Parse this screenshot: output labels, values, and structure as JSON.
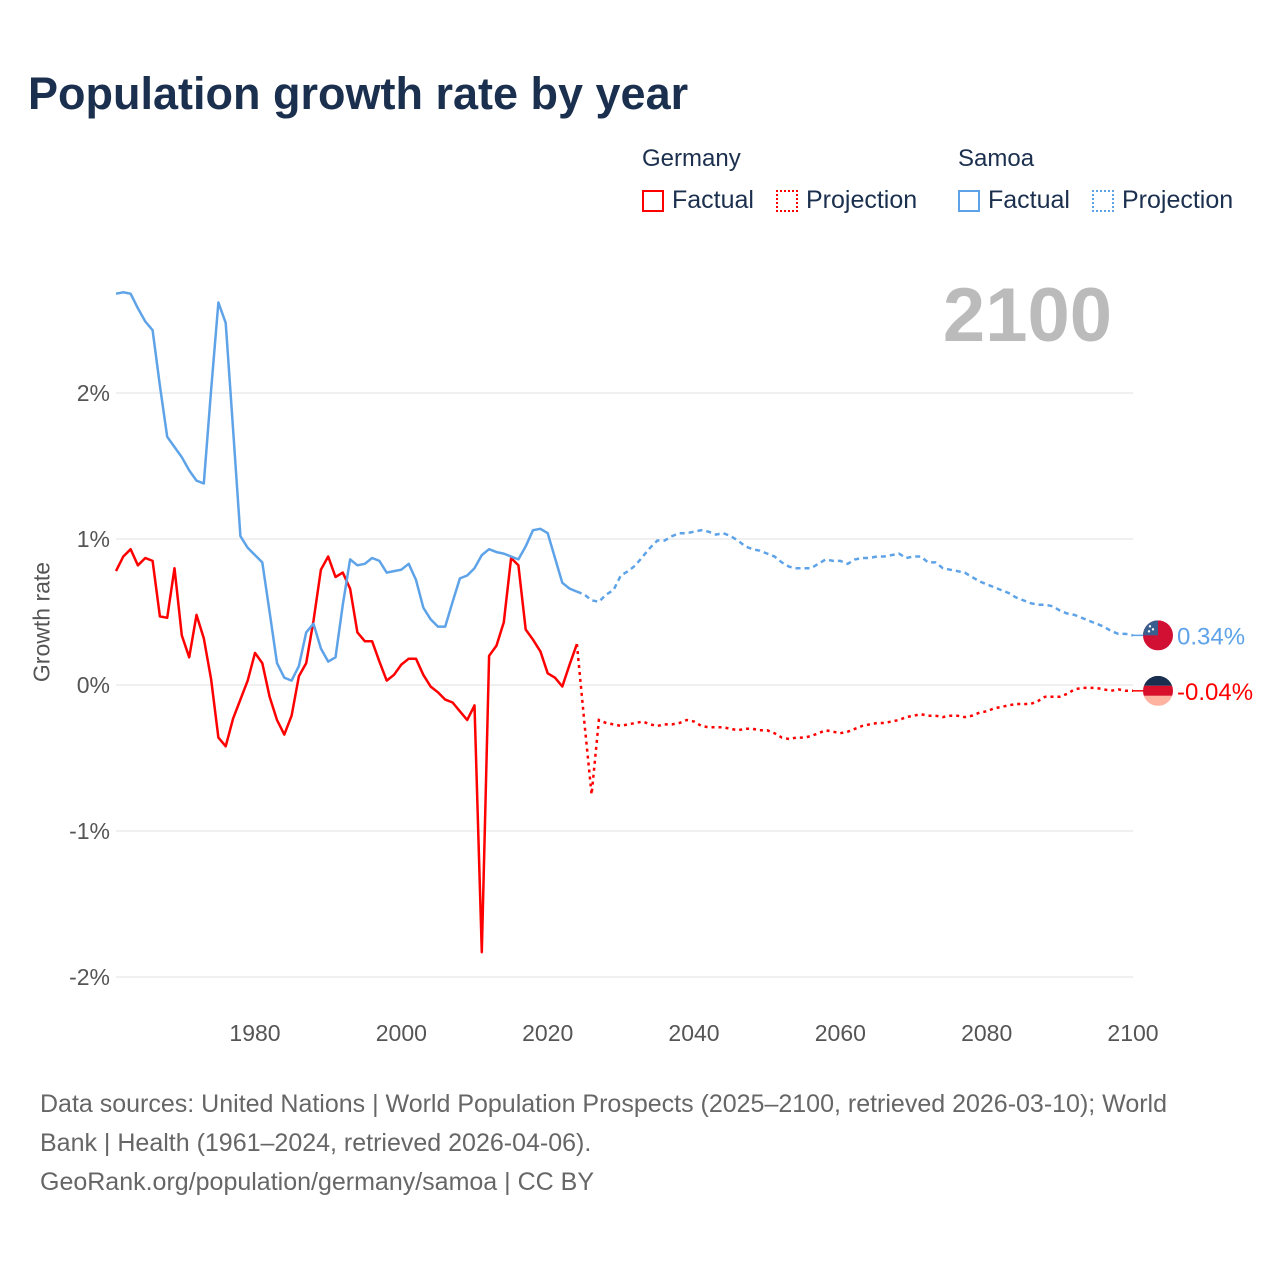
{
  "title": "Population growth rate by year",
  "year_label": "2100",
  "legend": [
    {
      "group": "Germany",
      "color": "#ff0000",
      "items": [
        "Factual",
        "Projection"
      ]
    },
    {
      "group": "Samoa",
      "color": "#5ea3e8",
      "items": [
        "Factual",
        "Projection"
      ]
    }
  ],
  "footer": {
    "line1": "Data sources: United Nations | World Population Prospects (2025–2100, retrieved 2026-03-10); World",
    "line2": "Bank | Health (1961–2024, retrieved 2026-04-06).",
    "line3": "GeoRank.org/population/germany/samoa | CC BY"
  },
  "chart_data": {
    "type": "line",
    "title": "Population growth rate by year",
    "xlabel": "",
    "ylabel": "Growth rate",
    "xlim": [
      1961,
      2100
    ],
    "ylim": [
      -2.1,
      2.75
    ],
    "x_ticks": [
      1980,
      2000,
      2020,
      2040,
      2060,
      2080,
      2100
    ],
    "x_tick_labels": [
      "1980",
      "2000",
      "2020",
      "2040",
      "2060",
      "2080",
      "2100"
    ],
    "y_ticks": [
      2,
      1,
      0,
      -1,
      -2
    ],
    "y_tick_labels": [
      "2%",
      "1%",
      "0%",
      "-1%",
      "-2%"
    ],
    "grid": true,
    "legend_position": "top-right",
    "series": [
      {
        "name": "Germany",
        "color": "#ff0000",
        "end_label": "-0.04%",
        "factual_start": 1961,
        "factual": [
          0.78,
          0.88,
          0.93,
          0.82,
          0.87,
          0.85,
          0.47,
          0.46,
          0.8,
          0.34,
          0.19,
          0.48,
          0.32,
          0.04,
          -0.36,
          -0.42,
          -0.23,
          -0.1,
          0.03,
          0.22,
          0.15,
          -0.08,
          -0.24,
          -0.34,
          -0.21,
          0.06,
          0.15,
          0.44,
          0.79,
          0.88,
          0.74,
          0.77,
          0.66,
          0.36,
          0.3,
          0.3,
          0.16,
          0.03,
          0.07,
          0.14,
          0.18,
          0.18,
          0.07,
          -0.01,
          -0.05,
          -0.1,
          -0.12,
          -0.18,
          -0.24,
          -0.14,
          -1.83,
          0.2,
          0.27,
          0.43,
          0.87,
          0.82,
          0.38,
          0.31,
          0.23,
          0.08,
          0.05,
          -0.01,
          0.14,
          0.28
        ],
        "projection_start": 2025,
        "projection": [
          -0.25,
          -0.75,
          -0.24,
          -0.26,
          -0.27,
          -0.28,
          -0.27,
          -0.26,
          -0.25,
          -0.27,
          -0.28,
          -0.27,
          -0.27,
          -0.26,
          -0.24,
          -0.25,
          -0.28,
          -0.29,
          -0.29,
          -0.29,
          -0.3,
          -0.31,
          -0.3,
          -0.3,
          -0.31,
          -0.31,
          -0.33,
          -0.36,
          -0.37,
          -0.36,
          -0.36,
          -0.35,
          -0.33,
          -0.31,
          -0.32,
          -0.33,
          -0.32,
          -0.3,
          -0.28,
          -0.27,
          -0.26,
          -0.26,
          -0.25,
          -0.24,
          -0.22,
          -0.21,
          -0.2,
          -0.21,
          -0.21,
          -0.22,
          -0.21,
          -0.21,
          -0.22,
          -0.21,
          -0.19,
          -0.18,
          -0.16,
          -0.15,
          -0.14,
          -0.13,
          -0.13,
          -0.13,
          -0.11,
          -0.08,
          -0.08,
          -0.08,
          -0.06,
          -0.03,
          -0.02,
          -0.02,
          -0.02,
          -0.03,
          -0.04,
          -0.03,
          -0.04,
          -0.04
        ]
      },
      {
        "name": "Samoa",
        "color": "#5ea3e8",
        "end_label": "0.34%",
        "factual_start": 1961,
        "factual": [
          2.68,
          2.69,
          2.68,
          2.58,
          2.49,
          2.43,
          2.05,
          1.7,
          1.63,
          1.56,
          1.47,
          1.4,
          1.38,
          2.02,
          2.62,
          2.48,
          1.75,
          1.02,
          0.94,
          0.89,
          0.84,
          0.5,
          0.15,
          0.05,
          0.03,
          0.13,
          0.36,
          0.42,
          0.25,
          0.16,
          0.19,
          0.55,
          0.86,
          0.82,
          0.83,
          0.87,
          0.85,
          0.77,
          0.78,
          0.79,
          0.83,
          0.72,
          0.53,
          0.45,
          0.4,
          0.4,
          0.57,
          0.73,
          0.75,
          0.8,
          0.89,
          0.93,
          0.91,
          0.9,
          0.88,
          0.86,
          0.95,
          1.06,
          1.07,
          1.04,
          0.87,
          0.7,
          0.66,
          0.64
        ],
        "projection_start": 2025,
        "projection": [
          0.62,
          0.58,
          0.57,
          0.62,
          0.65,
          0.75,
          0.78,
          0.82,
          0.88,
          0.94,
          0.99,
          0.99,
          1.02,
          1.04,
          1.04,
          1.05,
          1.06,
          1.05,
          1.03,
          1.04,
          1.02,
          0.99,
          0.95,
          0.93,
          0.92,
          0.9,
          0.88,
          0.84,
          0.81,
          0.8,
          0.8,
          0.8,
          0.83,
          0.86,
          0.85,
          0.85,
          0.83,
          0.86,
          0.87,
          0.87,
          0.88,
          0.88,
          0.89,
          0.9,
          0.87,
          0.88,
          0.88,
          0.84,
          0.84,
          0.8,
          0.79,
          0.78,
          0.77,
          0.74,
          0.71,
          0.69,
          0.67,
          0.65,
          0.63,
          0.6,
          0.58,
          0.56,
          0.55,
          0.55,
          0.54,
          0.51,
          0.49,
          0.48,
          0.46,
          0.44,
          0.42,
          0.4,
          0.37,
          0.35,
          0.35,
          0.34
        ]
      }
    ]
  }
}
